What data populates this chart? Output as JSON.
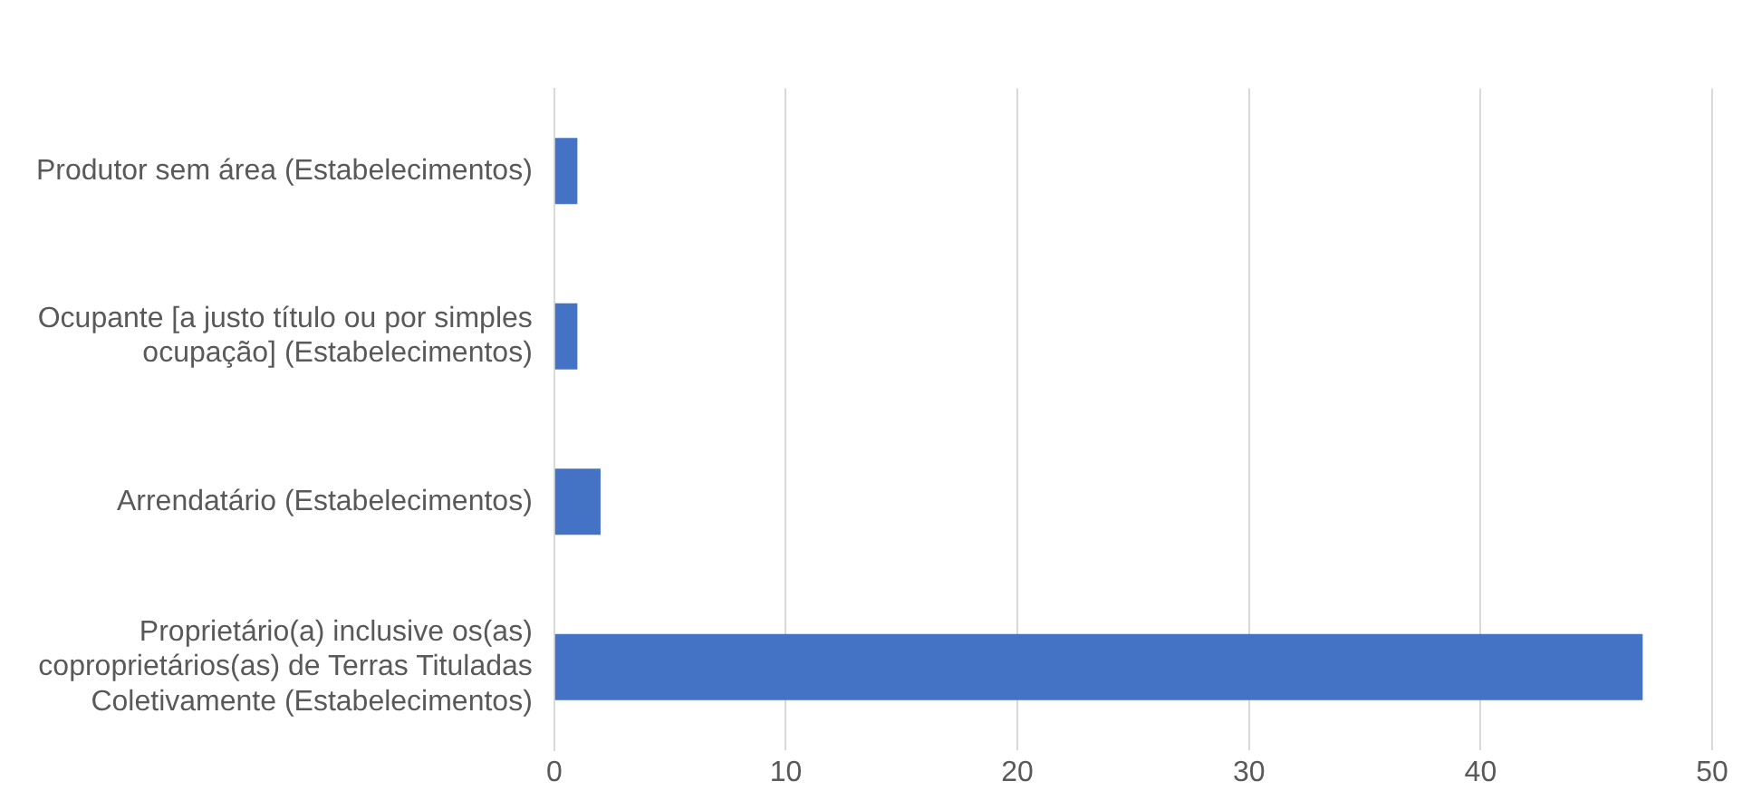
{
  "chart_data": {
    "type": "bar",
    "orientation": "horizontal",
    "categories": [
      "Produtor sem área (Estabelecimentos)",
      "Ocupante [a justo título ou por simples ocupação] (Estabelecimentos)",
      "Arrendatário (Estabelecimentos)",
      "Proprietário(a) inclusive os(as) coproprietários(as) de Terras Tituladas Coletivamente (Estabelecimentos)"
    ],
    "values": [
      1,
      1,
      2,
      47
    ],
    "color": "#4472c4",
    "xlim": [
      0,
      50
    ],
    "xticks": [
      0,
      10,
      20,
      30,
      40,
      50
    ],
    "grid": "x",
    "legend": false
  }
}
